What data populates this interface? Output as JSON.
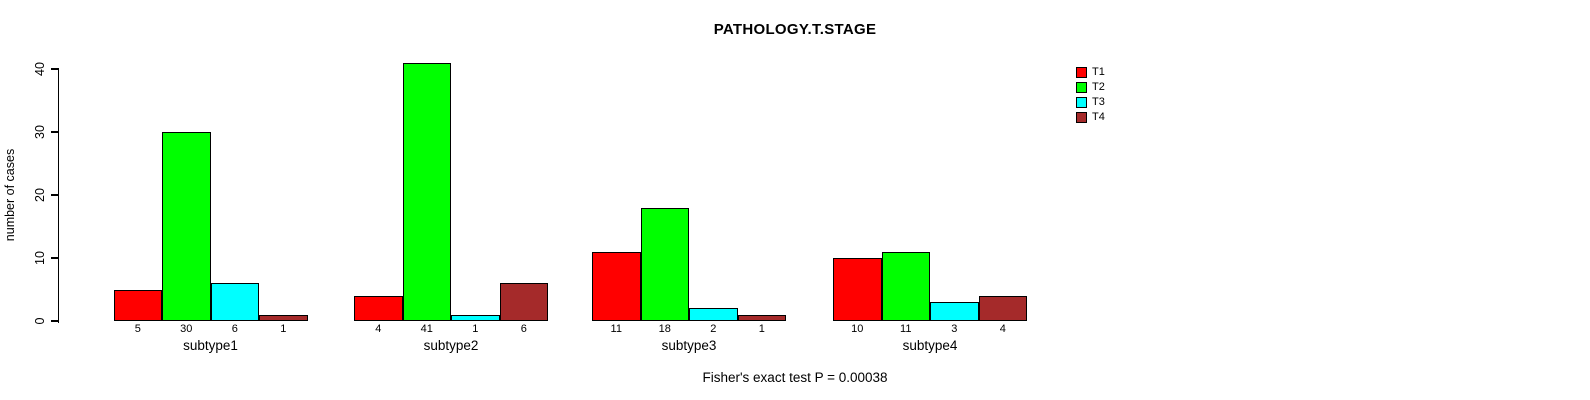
{
  "chart_data": {
    "type": "bar",
    "title": "PATHOLOGY.T.STAGE",
    "ylabel": "number of cases",
    "footer": "Fisher's exact test P = 0.00038",
    "categories": [
      "subtype1",
      "subtype2",
      "subtype3",
      "subtype4"
    ],
    "series": [
      {
        "name": "T1",
        "color": "#FF0000",
        "values": [
          5,
          4,
          11,
          10
        ]
      },
      {
        "name": "T2",
        "color": "#00FF00",
        "values": [
          30,
          41,
          18,
          11
        ]
      },
      {
        "name": "T3",
        "color": "#00FFFF",
        "values": [
          6,
          1,
          2,
          3
        ]
      },
      {
        "name": "T4",
        "color": "#A52A2A",
        "values": [
          1,
          6,
          1,
          4
        ]
      }
    ],
    "y_ticks": [
      0,
      10,
      20,
      30,
      40
    ],
    "ylim": [
      0,
      40
    ],
    "grid": false,
    "legend_position": "top-right",
    "value_labels_under_bars": true,
    "background_color": "#FFFFFF",
    "axis_color": "#000000"
  }
}
